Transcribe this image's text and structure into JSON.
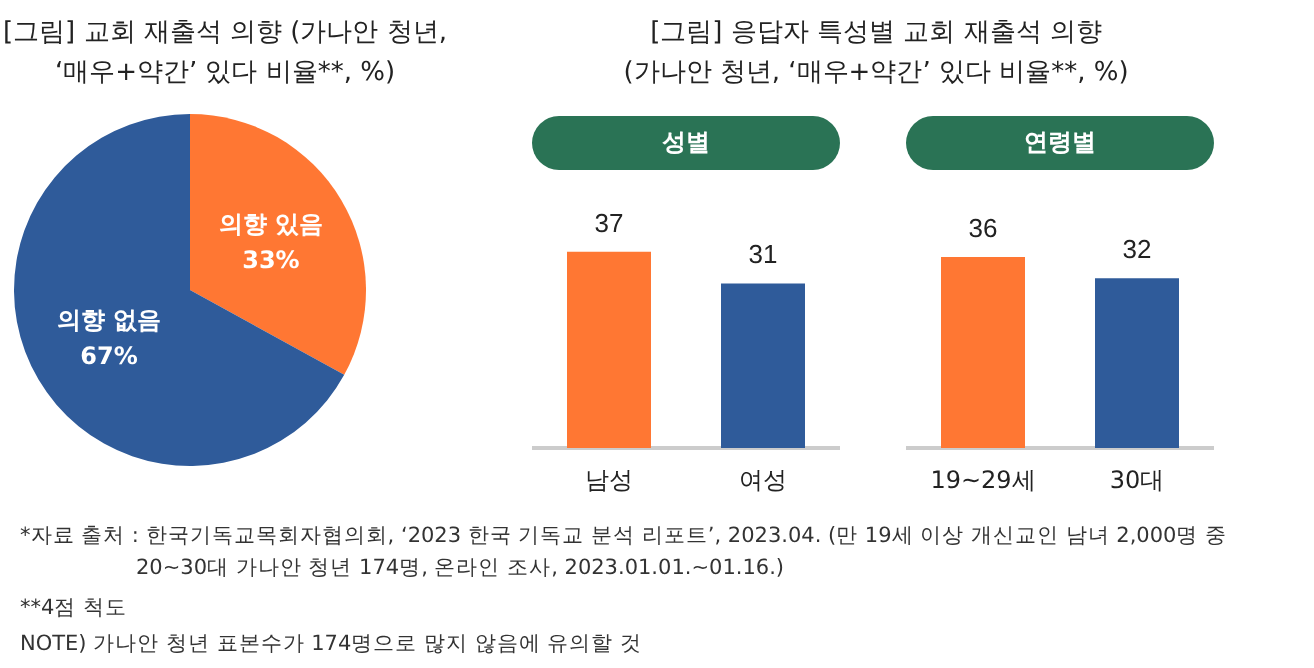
{
  "chart_data": [
    {
      "type": "pie",
      "title": "[그림] 교회 재출석 의향 (가나안 청년,\n‘매우+약간’ 있다 비율**, %)",
      "categories": [
        "의향 있음",
        "의향 없음"
      ],
      "values": [
        33,
        67
      ],
      "value_labels": [
        "33%",
        "67%"
      ],
      "colors": [
        "#ff7733",
        "#2f5b9a"
      ],
      "annotations": [
        "*자료 출처 : 한국기독교목회자협의회, ‘2023 한국 기독교 분석 리포트’, 2023.04. (만 19세 이상 개신교인 남녀 2,000명 중 20~30대 가나안 청년 174명, 온라인 조사, 2023.01.01.~01.16.)",
        "**4점 척도",
        "NOTE) 가나안 청년 표본수가 174명으로 많지 않음에 유의할 것"
      ]
    },
    {
      "type": "bar",
      "title": "[그림] 응답자 특성별 교회 재출석 의향\n(가나안 청년, ‘매우+약간’ 있다 비율**, %)",
      "subtitle": "성별",
      "categories": [
        "남성",
        "여성"
      ],
      "values": [
        37,
        31
      ],
      "colors": [
        "#ff7733",
        "#2f5b9a"
      ],
      "data_labels": true
    },
    {
      "type": "bar",
      "subtitle": "연령별",
      "categories": [
        "19~29세",
        "30대"
      ],
      "values": [
        36,
        32
      ],
      "colors": [
        "#ff7733",
        "#2f5b9a"
      ],
      "data_labels": true
    }
  ]
}
